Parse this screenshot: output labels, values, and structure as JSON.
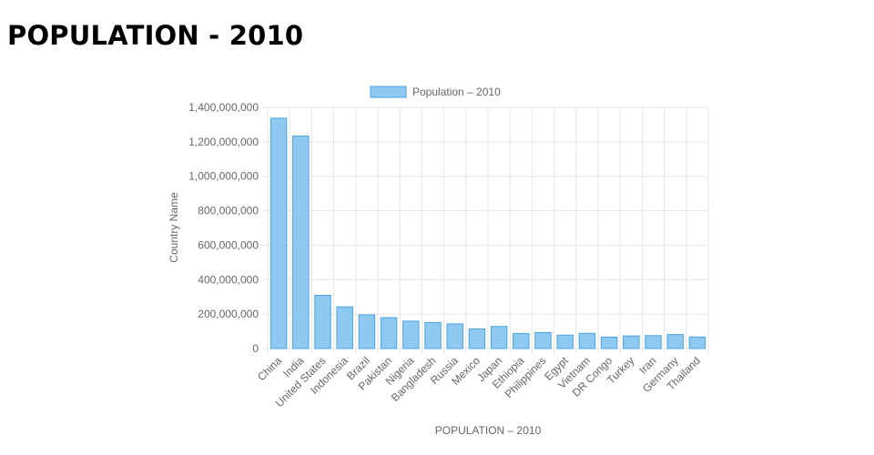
{
  "page": {
    "title": "POPULATION - 2010"
  },
  "colors": {
    "bar_fill": "#8ec9f2",
    "bar_stroke": "#4aa3df",
    "grid": "#e5e5e5",
    "text": "#666666"
  },
  "chart_data": {
    "type": "bar",
    "title": "",
    "legend": {
      "label": "Population – 2010",
      "position": "top"
    },
    "xlabel": "POPULATION – 2010",
    "ylabel": "Country Name",
    "ylim": [
      0,
      1400000000
    ],
    "ytick_values": [
      0,
      200000000,
      400000000,
      600000000,
      800000000,
      1000000000,
      1200000000,
      1400000000
    ],
    "ytick_labels": [
      "0",
      "200,000,000",
      "400,000,000",
      "600,000,000",
      "800,000,000",
      "1,000,000,000",
      "1,200,000,000",
      "1,400,000,000"
    ],
    "categories": [
      "China",
      "India",
      "United States",
      "Indonesia",
      "Brazil",
      "Pakistan",
      "Nigeria",
      "Bangladesh",
      "Russia",
      "Mexico",
      "Japan",
      "Ethiopia",
      "Philippines",
      "Egypt",
      "Vietnam",
      "DR Congo",
      "Turkey",
      "Iran",
      "Germany",
      "Thailand"
    ],
    "series": [
      {
        "name": "Population – 2010",
        "values": [
          1337000000,
          1234000000,
          309000000,
          242000000,
          195000000,
          179000000,
          159000000,
          151000000,
          143000000,
          114000000,
          128000000,
          87000000,
          93000000,
          78000000,
          88000000,
          66000000,
          73000000,
          75000000,
          81000000,
          67000000
        ]
      }
    ]
  }
}
